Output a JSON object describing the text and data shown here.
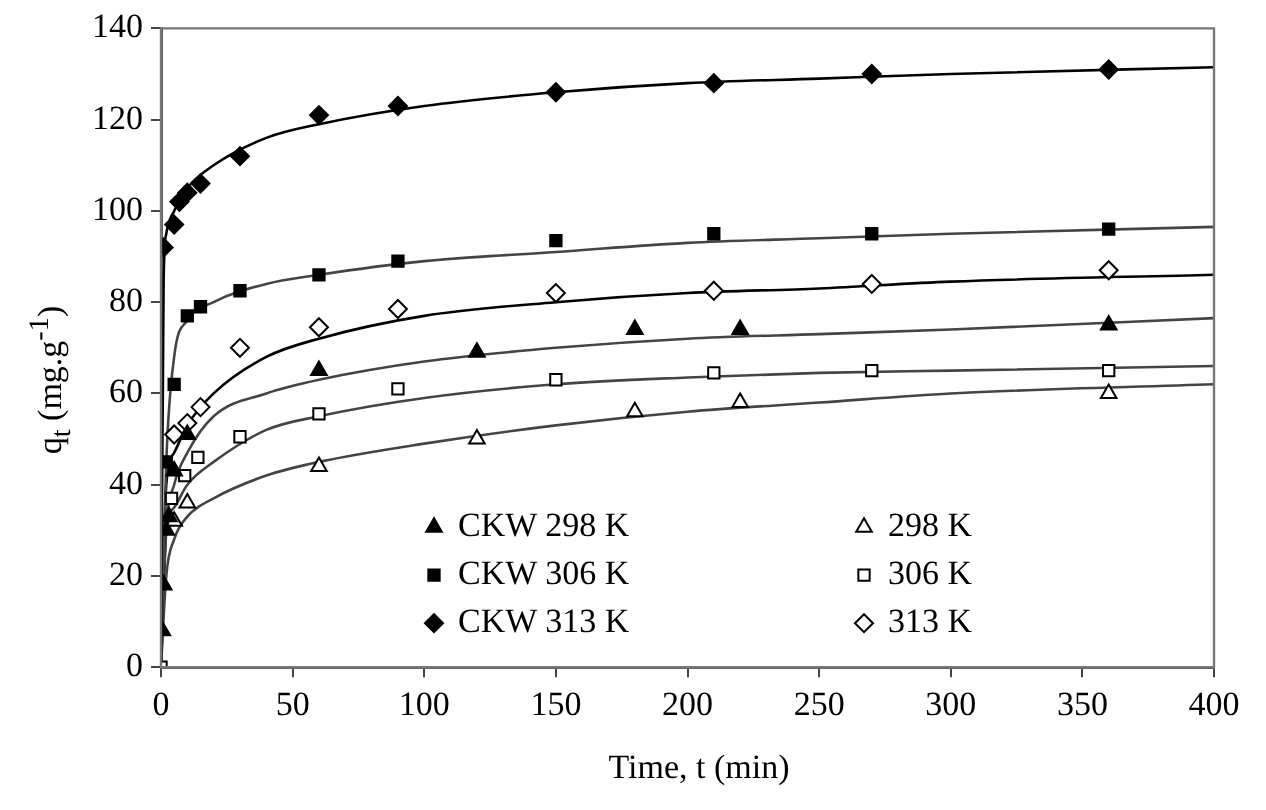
{
  "chart_data": {
    "type": "scatter",
    "xlabel": "Time, t (min)",
    "ylabel": "q$_{t}$ (mg.g$^{-1}$)",
    "xlim": [
      0,
      400
    ],
    "ylim": [
      0,
      140
    ],
    "xticks": [
      0,
      50,
      100,
      150,
      200,
      250,
      300,
      350,
      400
    ],
    "yticks": [
      0,
      20,
      40,
      60,
      80,
      100,
      120,
      140
    ],
    "grid": false,
    "legend": "bottom right",
    "series": [
      {
        "name": "CKW 298 K",
        "color": "#000000",
        "marker": "triangle",
        "x": [
          0.5,
          1,
          2,
          3,
          5,
          10,
          60,
          120,
          180,
          220,
          360
        ],
        "values": [
          8,
          18,
          30,
          33,
          43,
          51,
          65,
          69,
          74,
          74,
          75
        ]
      },
      {
        "name": "CKW 306 K",
        "color": "#000000",
        "marker": "square",
        "x": [
          2,
          5,
          10,
          15,
          30,
          60,
          90,
          150,
          210,
          270,
          360
        ],
        "values": [
          45,
          62,
          77,
          79,
          82.5,
          86,
          89,
          93.5,
          95,
          95,
          96
        ]
      },
      {
        "name": "CKW 313 K",
        "color": "#000000",
        "marker": "diamond",
        "x": [
          1,
          5,
          7,
          10,
          15,
          30,
          60,
          90,
          150,
          210,
          270,
          360
        ],
        "values": [
          92,
          97,
          102,
          104,
          106,
          112,
          121,
          123,
          126,
          128,
          130,
          131
        ]
      },
      {
        "name": "298 K",
        "color": "#ffffff",
        "marker": "triangle",
        "x": [
          5,
          10,
          60,
          120,
          180,
          220,
          360
        ],
        "values": [
          32,
          36,
          44,
          50,
          56,
          58,
          60
        ]
      },
      {
        "name": "306 K",
        "color": "#ffffff",
        "marker": "square",
        "x": [
          0,
          1,
          4,
          9,
          14,
          30,
          60,
          90,
          150,
          210,
          270,
          360
        ],
        "values": [
          0,
          null,
          37,
          42,
          46,
          50.5,
          55.5,
          61,
          63,
          64.5,
          65,
          65
        ]
      },
      {
        "name": "313 K",
        "color": "#ffffff",
        "marker": "diamond",
        "x": [
          5,
          10,
          15,
          30,
          60,
          90,
          150,
          210,
          270,
          360
        ],
        "values": [
          51,
          53.5,
          57,
          70,
          74.5,
          78.5,
          82,
          82.5,
          84,
          87
        ]
      },
      {
        "type": "line",
        "color": "#000000",
        "marker": "none",
        "x": [
          0,
          1,
          2,
          5,
          10,
          20,
          40,
          60,
          100,
          150,
          200,
          250,
          300,
          400
        ],
        "values": [
          0,
          85,
          95,
          100,
          105,
          110,
          116,
          119,
          123,
          126,
          128,
          129,
          130,
          131.5
        ]
      },
      {
        "type": "line",
        "color": "#444444",
        "marker": "none",
        "x": [
          0,
          2,
          5,
          10,
          20,
          40,
          60,
          100,
          150,
          200,
          250,
          300,
          400
        ],
        "values": [
          0,
          45,
          68,
          76,
          80,
          84,
          86,
          89,
          91,
          93,
          94,
          95,
          96.5
        ]
      },
      {
        "type": "line",
        "color": "#000000",
        "marker": "none",
        "x": [
          0,
          2,
          5,
          10,
          20,
          40,
          60,
          100,
          150,
          200,
          250,
          300,
          400
        ],
        "values": [
          0,
          40,
          47,
          53,
          60,
          68,
          72,
          77,
          80,
          82,
          83,
          84.5,
          86
        ]
      },
      {
        "type": "line",
        "color": "#444444",
        "marker": "none",
        "x": [
          0,
          2,
          5,
          10,
          20,
          40,
          60,
          100,
          150,
          200,
          250,
          300,
          400
        ],
        "values": [
          0,
          30,
          40,
          47,
          55,
          60,
          63,
          67,
          70,
          72,
          73,
          74,
          76.5
        ]
      },
      {
        "type": "line",
        "color": "#444444",
        "marker": "none",
        "x": [
          0,
          2,
          5,
          10,
          20,
          40,
          60,
          100,
          150,
          200,
          250,
          300,
          400
        ],
        "values": [
          0,
          30,
          35,
          40,
          45,
          52,
          55,
          59,
          62,
          63.5,
          64.5,
          65,
          66
        ]
      },
      {
        "type": "line",
        "color": "#444444",
        "marker": "none",
        "x": [
          0,
          2,
          5,
          10,
          20,
          40,
          60,
          100,
          150,
          200,
          250,
          300,
          400
        ],
        "values": [
          0,
          20,
          28,
          33,
          37,
          42,
          45,
          49,
          53,
          56,
          58,
          60,
          62
        ]
      }
    ]
  }
}
